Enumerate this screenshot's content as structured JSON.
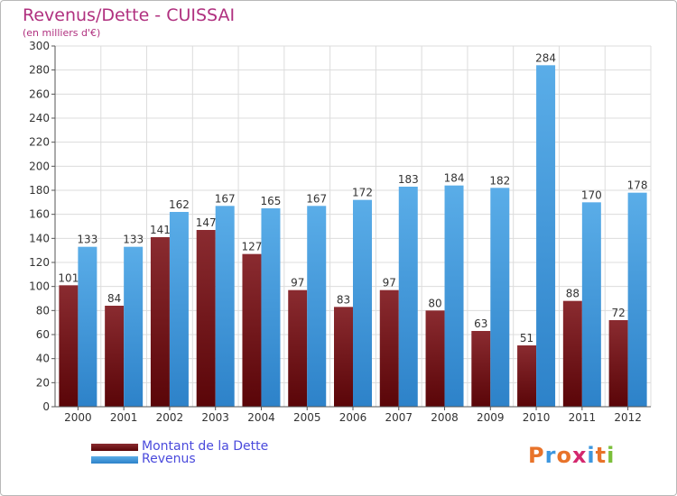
{
  "title": "Revenus/Dette - CUISSAI",
  "subtitle": "(en milliers d'€)",
  "logo_text": "Proxiti",
  "colors": {
    "dette": "#6b1016",
    "revenus": "#3d97df",
    "title": "#b0307f",
    "legend_text": "#4a4adc"
  },
  "chart_data": {
    "type": "bar",
    "categories": [
      "2000",
      "2001",
      "2002",
      "2003",
      "2004",
      "2005",
      "2006",
      "2007",
      "2008",
      "2009",
      "2010",
      "2011",
      "2012"
    ],
    "series": [
      {
        "name": "Montant de la Dette",
        "values": [
          101,
          84,
          141,
          147,
          127,
          97,
          83,
          97,
          80,
          63,
          51,
          88,
          72
        ]
      },
      {
        "name": "Revenus",
        "values": [
          133,
          133,
          162,
          167,
          165,
          167,
          172,
          183,
          184,
          182,
          284,
          170,
          178
        ]
      }
    ],
    "ylim": [
      0,
      300
    ],
    "yticks": [
      0,
      20,
      40,
      60,
      80,
      100,
      120,
      140,
      160,
      180,
      200,
      220,
      240,
      260,
      280,
      300
    ],
    "grid": true,
    "legend": "bottom-left"
  }
}
